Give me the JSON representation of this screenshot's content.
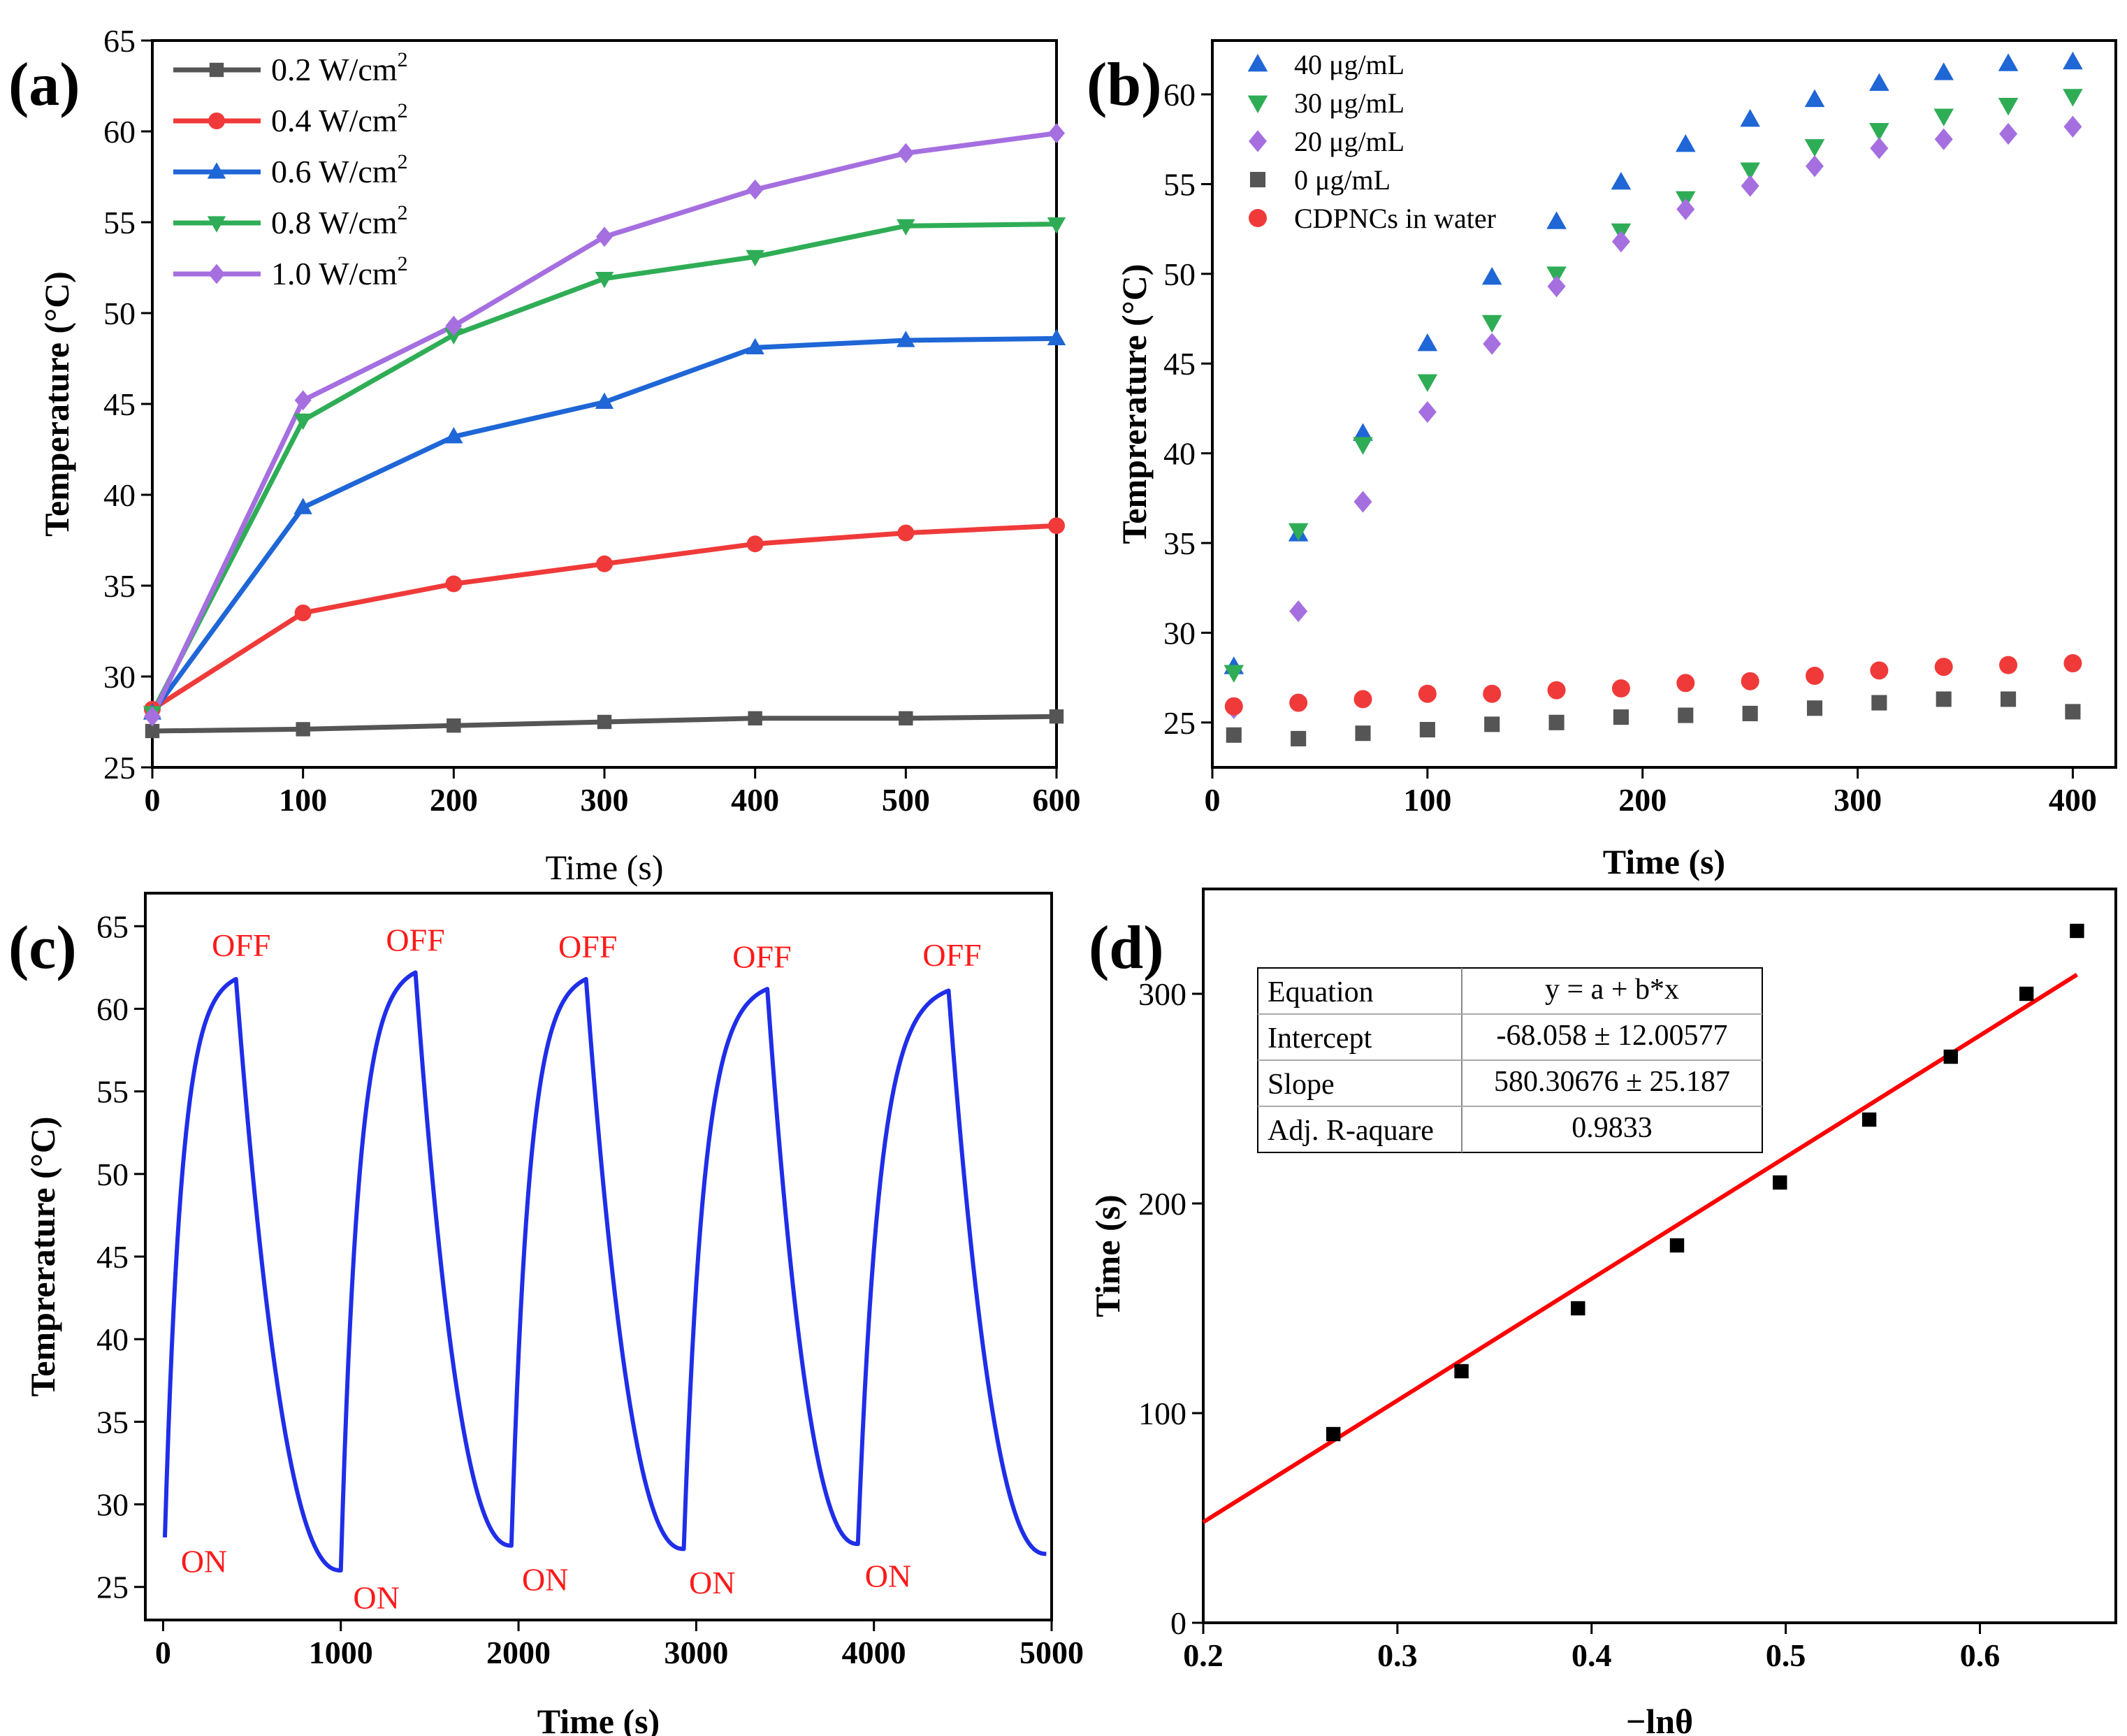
{
  "chart_data": [
    {
      "id": "a",
      "panel_label": "(a)",
      "type": "line",
      "xlabel": "Time (s)",
      "ylabel": "Temperature (°C)",
      "xlim": [
        0,
        600
      ],
      "ylim": [
        25,
        65
      ],
      "xticks": [
        0,
        100,
        200,
        300,
        400,
        500,
        600
      ],
      "yticks": [
        25,
        30,
        35,
        40,
        45,
        50,
        55,
        60,
        65
      ],
      "legend_position": "top-left",
      "x": [
        0,
        100,
        200,
        300,
        400,
        500,
        600
      ],
      "series": [
        {
          "name": "0.2 W/cm",
          "sup": "2",
          "color": "#555555",
          "marker": "square",
          "values": [
            27.0,
            27.1,
            27.3,
            27.5,
            27.7,
            27.7,
            27.8
          ]
        },
        {
          "name": "0.4 W/cm",
          "sup": "2",
          "color": "#f03a3a",
          "marker": "circle",
          "values": [
            28.2,
            33.5,
            35.1,
            36.2,
            37.3,
            37.9,
            38.3
          ]
        },
        {
          "name": "0.6 W/cm",
          "sup": "2",
          "color": "#1f66d6",
          "marker": "triangle-up",
          "values": [
            28.0,
            39.3,
            43.2,
            45.1,
            48.1,
            48.5,
            48.6
          ]
        },
        {
          "name": "0.8 W/cm",
          "sup": "2",
          "color": "#2fad56",
          "marker": "triangle-down",
          "values": [
            28.0,
            44.1,
            48.8,
            51.9,
            53.1,
            54.8,
            54.9
          ]
        },
        {
          "name": "1.0 W/cm",
          "sup": "2",
          "color": "#a56fe0",
          "marker": "diamond",
          "values": [
            27.8,
            45.2,
            49.3,
            54.2,
            56.8,
            58.8,
            59.9
          ]
        }
      ]
    },
    {
      "id": "b",
      "panel_label": "(b)",
      "type": "scatter",
      "xlabel": "Time (s)",
      "ylabel": "Temprerature (°C)",
      "xlim": [
        0,
        420
      ],
      "ylim": [
        22.5,
        63
      ],
      "xticks": [
        0,
        100,
        200,
        300,
        400
      ],
      "yticks": [
        25,
        30,
        35,
        40,
        45,
        50,
        55,
        60
      ],
      "legend_position": "top-left",
      "x": [
        10,
        40,
        70,
        100,
        130,
        160,
        190,
        220,
        250,
        280,
        310,
        340,
        370,
        400
      ],
      "series": [
        {
          "name": "40 μg/mL",
          "color": "#1f66d6",
          "marker": "triangle-up",
          "values": [
            28.1,
            35.5,
            41.1,
            46.1,
            49.8,
            52.9,
            55.1,
            57.2,
            58.6,
            59.7,
            60.6,
            61.2,
            61.7,
            61.8
          ]
        },
        {
          "name": "30 μg/mL",
          "color": "#2fad56",
          "marker": "triangle-down",
          "values": [
            27.8,
            35.7,
            40.5,
            44.0,
            47.3,
            50.0,
            52.4,
            54.2,
            55.8,
            57.1,
            58.0,
            58.8,
            59.4,
            59.9
          ]
        },
        {
          "name": "20 μg/mL",
          "color": "#a56fe0",
          "marker": "diamond",
          "values": [
            25.8,
            31.2,
            37.3,
            42.3,
            46.1,
            49.3,
            51.8,
            53.6,
            54.9,
            56.0,
            57.0,
            57.5,
            57.8,
            58.2
          ]
        },
        {
          "name": "0 μg/mL",
          "color": "#555555",
          "marker": "square",
          "values": [
            24.3,
            24.1,
            24.4,
            24.6,
            24.9,
            25.0,
            25.3,
            25.4,
            25.5,
            25.8,
            26.1,
            26.3,
            26.3,
            25.6
          ]
        },
        {
          "name": "CDPNCs in water",
          "color": "#f03a3a",
          "marker": "circle",
          "values": [
            25.9,
            26.1,
            26.3,
            26.6,
            26.6,
            26.8,
            26.9,
            27.2,
            27.3,
            27.6,
            27.9,
            28.1,
            28.2,
            28.3
          ]
        }
      ]
    },
    {
      "id": "c",
      "panel_label": "(c)",
      "type": "line",
      "xlabel": "Time (s)",
      "ylabel": "Temprerature (°C)",
      "xlim": [
        -100,
        5000
      ],
      "ylim": [
        23,
        67
      ],
      "xticks": [
        0,
        1000,
        2000,
        3000,
        4000,
        5000
      ],
      "yticks": [
        25,
        30,
        35,
        40,
        45,
        50,
        55,
        60,
        65
      ],
      "color": "#1f2ee8",
      "cycles": [
        {
          "on_time": 10,
          "on_temp": 28.0,
          "off_time": 410,
          "off_temp": 61.8,
          "end_time": 1000,
          "end_temp": 26.0
        },
        {
          "on_time": 1000,
          "on_temp": 26.0,
          "off_time": 1420,
          "off_temp": 62.2,
          "end_time": 1960,
          "end_temp": 27.5
        },
        {
          "on_time": 1960,
          "on_temp": 27.5,
          "off_time": 2380,
          "off_temp": 61.8,
          "end_time": 2930,
          "end_temp": 27.3
        },
        {
          "on_time": 2930,
          "on_temp": 27.3,
          "off_time": 3400,
          "off_temp": 61.2,
          "end_time": 3910,
          "end_temp": 27.6
        },
        {
          "on_time": 3910,
          "on_temp": 27.6,
          "off_time": 4420,
          "off_temp": 61.1,
          "end_time": 4970,
          "end_temp": 27.0
        }
      ],
      "annotations": [
        {
          "text": "ON",
          "x": 230,
          "y": 25.9
        },
        {
          "text": "OFF",
          "x": 440,
          "y": 63.2
        },
        {
          "text": "ON",
          "x": 1200,
          "y": 23.7
        },
        {
          "text": "OFF",
          "x": 1420,
          "y": 63.5
        },
        {
          "text": "ON",
          "x": 2150,
          "y": 24.8
        },
        {
          "text": "OFF",
          "x": 2390,
          "y": 63.1
        },
        {
          "text": "ON",
          "x": 3090,
          "y": 24.6
        },
        {
          "text": "OFF",
          "x": 3370,
          "y": 62.5
        },
        {
          "text": "ON",
          "x": 4080,
          "y": 25.0
        },
        {
          "text": "OFF",
          "x": 4440,
          "y": 62.6
        }
      ]
    },
    {
      "id": "d",
      "panel_label": "(d)",
      "type": "scatter",
      "xlabel": "−lnθ",
      "ylabel": "Time (s)",
      "xlim": [
        0.2,
        0.67
      ],
      "ylim": [
        0,
        350
      ],
      "xticks": [
        0.2,
        0.3,
        0.4,
        0.5,
        0.6
      ],
      "yticks": [
        0,
        100,
        200,
        300
      ],
      "points": {
        "color": "#000000",
        "x": [
          0.267,
          0.333,
          0.393,
          0.444,
          0.497,
          0.543,
          0.585,
          0.624,
          0.65
        ],
        "y": [
          90,
          120,
          150,
          180,
          210,
          240,
          270,
          300,
          330
        ]
      },
      "fit": {
        "color": "#ff0000",
        "intercept": -68.058,
        "slope": 580.30676,
        "x_range": [
          0.2,
          0.65
        ]
      },
      "table": [
        [
          "Equation",
          "y = a + b*x"
        ],
        [
          "Intercept",
          "-68.058 ± 12.00577"
        ],
        [
          "Slope",
          "580.30676 ± 25.187"
        ],
        [
          "Adj. R-aquare",
          "0.9833"
        ]
      ]
    }
  ]
}
